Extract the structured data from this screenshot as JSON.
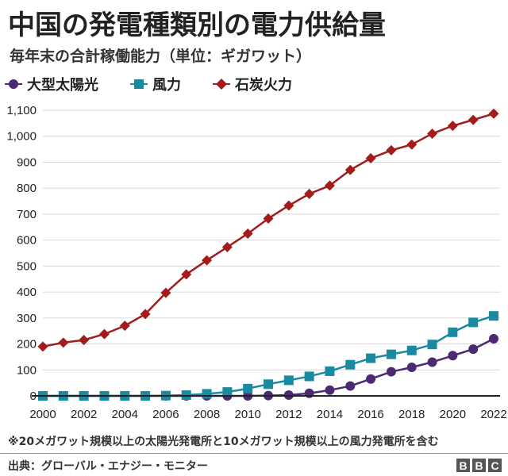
{
  "title": "中国の発電種類別の電力供給量",
  "subtitle": "毎年末の合計稼働能力（単位：ギガワット）",
  "note": "※20メガワット規模以上の太陽光発電所と10メガワット規模以上の風力発電所を含む",
  "source": "出典：グローバル・エナジー・モニター",
  "logo": {
    "letters": [
      "B",
      "B",
      "C"
    ]
  },
  "chart_data": {
    "type": "line",
    "title": "中国の発電種類別の電力供給量",
    "subtitle": "毎年末の合計稼働能力（単位：ギガワット）",
    "xlabel": "",
    "ylabel": "",
    "grid": true,
    "legend_position": "top-left",
    "x": [
      2000,
      2001,
      2002,
      2003,
      2004,
      2005,
      2006,
      2007,
      2008,
      2009,
      2010,
      2011,
      2012,
      2013,
      2014,
      2015,
      2016,
      2017,
      2018,
      2019,
      2020,
      2021,
      2022
    ],
    "x_ticks": [
      "2000",
      "2002",
      "2004",
      "2006",
      "2008",
      "2010",
      "2012",
      "2014",
      "2016",
      "2018",
      "2020",
      "2022"
    ],
    "y_ticks": [
      "0",
      "100",
      "200",
      "300",
      "400",
      "500",
      "600",
      "700",
      "800",
      "900",
      "1,000",
      "1,100"
    ],
    "xlim": [
      2000,
      2022
    ],
    "ylim": [
      0,
      1100
    ],
    "series": [
      {
        "name": "大型太陽光",
        "color": "#4b2a73",
        "marker": "circle",
        "values": [
          0,
          0,
          0,
          0,
          0,
          0,
          0,
          0,
          0,
          0,
          0,
          1,
          3,
          10,
          22,
          38,
          65,
          93,
          110,
          130,
          155,
          180,
          220
        ]
      },
      {
        "name": "風力",
        "color": "#1a8aa0",
        "marker": "square",
        "values": [
          0,
          0,
          0,
          0,
          0,
          0,
          1,
          3,
          8,
          15,
          28,
          45,
          60,
          75,
          95,
          120,
          145,
          160,
          175,
          198,
          245,
          283,
          308
        ]
      },
      {
        "name": "石炭火力",
        "color": "#a31c1c",
        "marker": "diamond",
        "values": [
          190,
          205,
          215,
          238,
          270,
          315,
          397,
          468,
          522,
          573,
          625,
          683,
          733,
          778,
          810,
          870,
          915,
          946,
          968,
          1010,
          1040,
          1063,
          1087
        ]
      }
    ]
  }
}
